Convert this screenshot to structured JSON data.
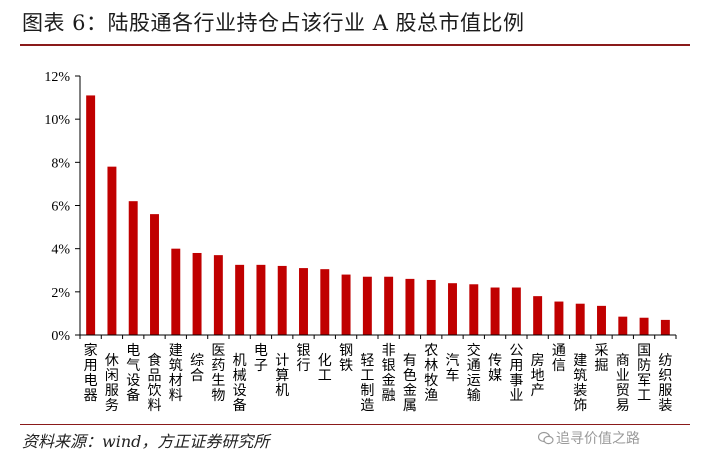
{
  "title": "图表 6：陆股通各行业持仓占该行业 A 股总市值比例",
  "source": "资料来源：wind，方正证券研究所",
  "watermark": "追寻价值之路",
  "colors": {
    "bar": "#c00000",
    "rule": "#8a1a1a",
    "axis": "#000000"
  },
  "chart_data": {
    "type": "bar",
    "title": "图表 6：陆股通各行业持仓占该行业 A 股总市值比例",
    "xlabel": "",
    "ylabel": "",
    "ylim": [
      0,
      12
    ],
    "yticks": [
      "0%",
      "2%",
      "4%",
      "6%",
      "8%",
      "10%",
      "12%"
    ],
    "grid": false,
    "legend": "none",
    "categories": [
      "家用电器",
      "休闲服务",
      "电气设备",
      "食品饮料",
      "建筑材料",
      "综合",
      "医药生物",
      "机械设备",
      "电子",
      "计算机",
      "银行",
      "化工",
      "钢铁",
      "轻工制造",
      "非银金融",
      "有色金属",
      "农林牧渔",
      "汽车",
      "交通运输",
      "传媒",
      "公用事业",
      "房地产",
      "通信",
      "建筑装饰",
      "采掘",
      "商业贸易",
      "国防军工",
      "纺织服装"
    ],
    "values": [
      11.1,
      7.8,
      6.2,
      5.6,
      4.0,
      3.8,
      3.7,
      3.25,
      3.25,
      3.2,
      3.1,
      3.05,
      2.8,
      2.7,
      2.7,
      2.6,
      2.55,
      2.4,
      2.35,
      2.2,
      2.2,
      1.8,
      1.55,
      1.45,
      1.35,
      0.85,
      0.8,
      0.7
    ]
  }
}
